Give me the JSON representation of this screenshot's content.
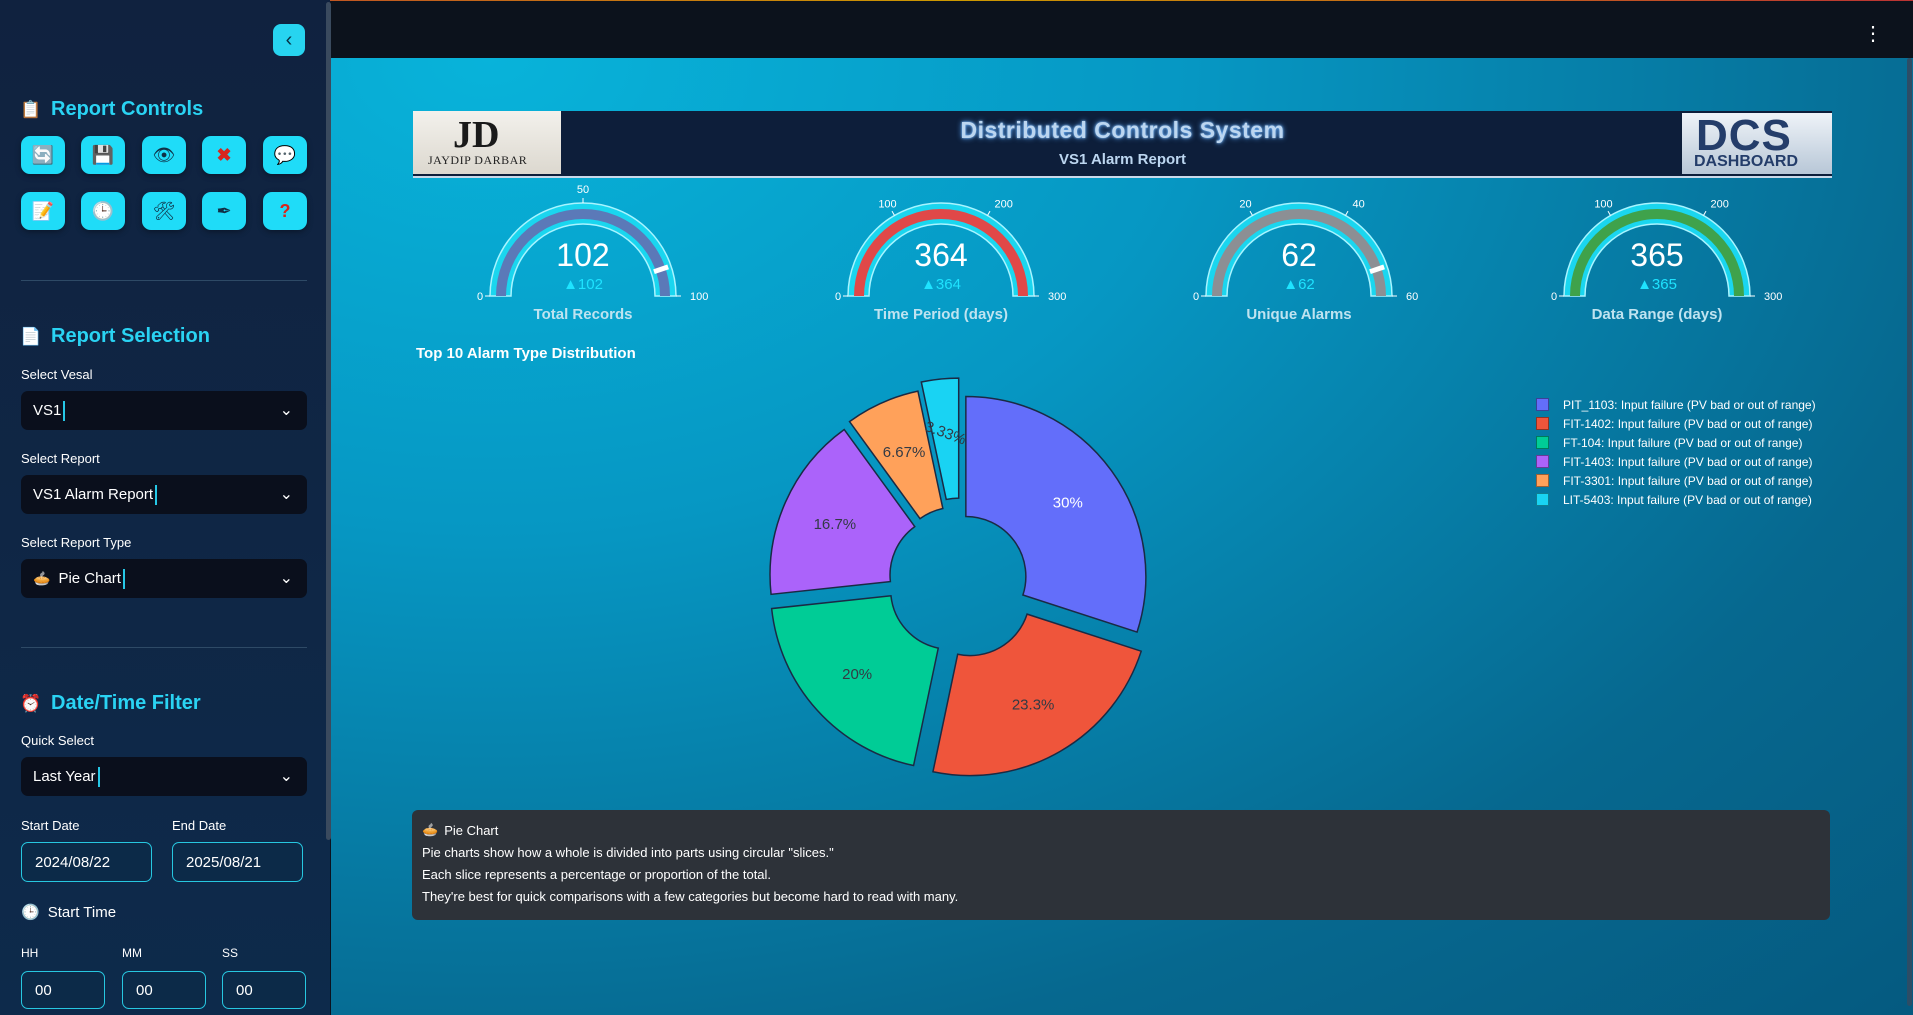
{
  "sidebar": {
    "report_controls_title": "Report Controls",
    "report_selection_title": "Report Selection",
    "vessel_label": "Select Vesal",
    "vessel_value": "VS1",
    "report_label": "Select Report",
    "report_value": "VS1 Alarm Report",
    "report_type_label": "Select Report Type",
    "report_type_value": "Pie Chart",
    "datetime_title": "Date/Time Filter",
    "quick_select_label": "Quick Select",
    "quick_select_value": "Last Year",
    "start_date_label": "Start Date",
    "start_date_value": "2024/08/22",
    "end_date_label": "End Date",
    "end_date_value": "2025/08/21",
    "start_time_label": "Start Time",
    "hh_label": "HH",
    "mm_label": "MM",
    "ss_label": "SS",
    "hh_value": "00",
    "mm_value": "00",
    "ss_value": "00"
  },
  "banner": {
    "title": "Distributed Controls System",
    "subtitle": "VS1 Alarm Report",
    "logo_left_mono": "JD",
    "logo_left_name": "JAYDIP DARBAR",
    "logo_right_main": "DCS",
    "logo_right_sub": "DASHBOARD"
  },
  "gauges": [
    {
      "title": "Total Records",
      "value": "102",
      "delta": "▲102",
      "min": "0",
      "max": 100,
      "ticks": [
        "0",
        "50",
        "100"
      ],
      "fill": 1.0,
      "color": "#5b79b8"
    },
    {
      "title": "Time Period (days)",
      "value": "364",
      "delta": "▲364",
      "min": "0",
      "max": 300,
      "ticks": [
        "0",
        "100",
        "200",
        "300"
      ],
      "fill": 1.0,
      "color": "#e04848"
    },
    {
      "title": "Unique Alarms",
      "value": "62",
      "delta": "▲62",
      "min": "0",
      "max": 60,
      "ticks": [
        "0",
        "20",
        "40",
        "60"
      ],
      "fill": 1.0,
      "color": "#8c8f94"
    },
    {
      "title": "Data Range (days)",
      "value": "365",
      "delta": "▲365",
      "min": "0",
      "max": 300,
      "ticks": [
        "0",
        "100",
        "200",
        "300"
      ],
      "fill": 1.0,
      "color": "#3fa24b"
    }
  ],
  "chart_title": "Top 10 Alarm Type Distribution",
  "chart_data": {
    "type": "pie",
    "title": "Top 10 Alarm Type Distribution",
    "labels": [
      "PIT_1103: Input failure (PV bad or out of range)",
      "FIT-1402: Input failure (PV bad or out of range)",
      "FT-104: Input failure (PV bad or out of range)",
      "FIT-1403: Input failure (PV bad or out of range)",
      "FIT-3301: Input failure (PV bad or out of range)",
      "LIT-5403: Input failure (PV bad or out of range)"
    ],
    "values": [
      30,
      23.3,
      20,
      16.7,
      6.67,
      3.33
    ],
    "display_labels": [
      "30%",
      "23.3%",
      "20%",
      "16.7%",
      "6.67%",
      "3.33%"
    ],
    "colors": [
      "#636efa",
      "#ef553b",
      "#00cc96",
      "#ab63fa",
      "#ffa15a",
      "#19d3f3"
    ],
    "hole": true,
    "legend_position": "top-right"
  },
  "info": {
    "title": "Pie Chart",
    "line1": "Pie charts show how a whole is divided into parts using circular \"slices.\"",
    "line2": "Each slice represents a percentage or proportion of the total.",
    "line3": "They're best for quick comparisons with a few categories but become hard to read with many."
  },
  "icons": {
    "controls": [
      "refresh-icon",
      "save-icon",
      "eye-icon",
      "close-icon",
      "comment-icon",
      "notes-icon",
      "clock-icon",
      "tools-icon",
      "pen-icon",
      "help-icon"
    ]
  }
}
